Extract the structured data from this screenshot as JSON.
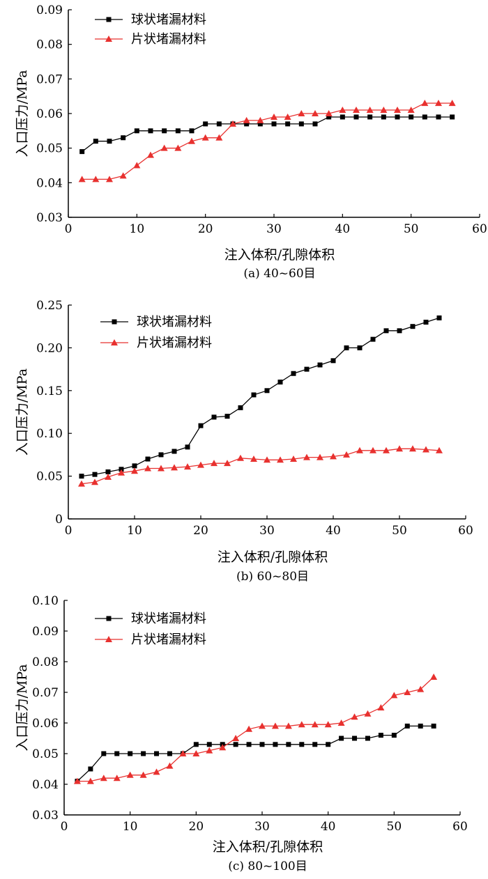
{
  "chart_data": [
    {
      "type": "line",
      "caption": "(a) 40~60目",
      "xlabel": "注入体积/孔隙体积",
      "ylabel": "入口压力/MPa",
      "xlim": [
        0,
        60
      ],
      "ylim": [
        0.03,
        0.09
      ],
      "xticks": [
        "0",
        "10",
        "20",
        "30",
        "40",
        "50",
        "60"
      ],
      "yticks": [
        "0.03",
        "0.04",
        "0.05",
        "0.06",
        "0.07",
        "0.08",
        "0.09"
      ],
      "legend_position": "top-left",
      "series": [
        {
          "name": "球状堵漏材料",
          "color": "#000000",
          "marker": "square",
          "x": [
            2,
            4,
            6,
            8,
            10,
            12,
            14,
            16,
            18,
            20,
            22,
            24,
            26,
            28,
            30,
            32,
            34,
            36,
            38,
            40,
            42,
            44,
            46,
            48,
            50,
            52,
            54,
            56
          ],
          "y": [
            0.049,
            0.052,
            0.052,
            0.053,
            0.055,
            0.055,
            0.055,
            0.055,
            0.055,
            0.057,
            0.057,
            0.057,
            0.057,
            0.057,
            0.057,
            0.057,
            0.057,
            0.057,
            0.059,
            0.059,
            0.059,
            0.059,
            0.059,
            0.059,
            0.059,
            0.059,
            0.059,
            0.059
          ]
        },
        {
          "name": "片状堵漏材料",
          "color": "#e8312f",
          "marker": "triangle",
          "x": [
            2,
            4,
            6,
            8,
            10,
            12,
            14,
            16,
            18,
            20,
            22,
            24,
            26,
            28,
            30,
            32,
            34,
            36,
            38,
            40,
            42,
            44,
            46,
            48,
            50,
            52,
            54,
            56
          ],
          "y": [
            0.041,
            0.041,
            0.041,
            0.042,
            0.045,
            0.048,
            0.05,
            0.05,
            0.052,
            0.053,
            0.053,
            0.057,
            0.058,
            0.058,
            0.059,
            0.059,
            0.06,
            0.06,
            0.06,
            0.061,
            0.061,
            0.061,
            0.061,
            0.061,
            0.061,
            0.063,
            0.063,
            0.063
          ]
        }
      ]
    },
    {
      "type": "line",
      "caption": "(b) 60~80目",
      "xlabel": "注入体积/孔隙体积",
      "ylabel": "入口压力/MPa",
      "xlim": [
        0,
        60
      ],
      "ylim": [
        0,
        0.25
      ],
      "xticks": [
        "0",
        "10",
        "20",
        "30",
        "40",
        "50",
        "60"
      ],
      "yticks": [
        "0",
        "0.05",
        "0.10",
        "0.15",
        "0.20",
        "0.25"
      ],
      "legend_position": "top-left",
      "series": [
        {
          "name": "球状堵漏材料",
          "color": "#000000",
          "marker": "square",
          "x": [
            2,
            4,
            6,
            8,
            10,
            12,
            14,
            16,
            18,
            20,
            22,
            24,
            26,
            28,
            30,
            32,
            34,
            36,
            38,
            40,
            42,
            44,
            46,
            48,
            50,
            52,
            54,
            56
          ],
          "y": [
            0.05,
            0.052,
            0.055,
            0.058,
            0.062,
            0.07,
            0.075,
            0.079,
            0.084,
            0.109,
            0.119,
            0.12,
            0.13,
            0.145,
            0.15,
            0.16,
            0.17,
            0.175,
            0.18,
            0.185,
            0.2,
            0.2,
            0.21,
            0.22,
            0.22,
            0.225,
            0.23,
            0.235
          ]
        },
        {
          "name": "片状堵漏材料",
          "color": "#e8312f",
          "marker": "triangle",
          "x": [
            2,
            4,
            6,
            8,
            10,
            12,
            14,
            16,
            18,
            20,
            22,
            24,
            26,
            28,
            30,
            32,
            34,
            36,
            38,
            40,
            42,
            44,
            46,
            48,
            50,
            52,
            54,
            56
          ],
          "y": [
            0.041,
            0.043,
            0.049,
            0.054,
            0.056,
            0.059,
            0.059,
            0.06,
            0.061,
            0.063,
            0.065,
            0.065,
            0.071,
            0.07,
            0.069,
            0.069,
            0.07,
            0.072,
            0.072,
            0.073,
            0.075,
            0.08,
            0.08,
            0.08,
            0.082,
            0.082,
            0.081,
            0.08
          ]
        }
      ]
    },
    {
      "type": "line",
      "caption": "(c) 80~100目",
      "xlabel": "注入体积/孔隙体积",
      "ylabel": "入口压力/MPa",
      "xlim": [
        0,
        60
      ],
      "ylim": [
        0.03,
        0.1
      ],
      "xticks": [
        "0",
        "10",
        "20",
        "30",
        "40",
        "50",
        "60"
      ],
      "yticks": [
        "0.03",
        "0.04",
        "0.05",
        "0.06",
        "0.07",
        "0.08",
        "0.09",
        "0.10"
      ],
      "legend_position": "top-left",
      "series": [
        {
          "name": "球状堵漏材料",
          "color": "#000000",
          "marker": "square",
          "x": [
            2,
            4,
            6,
            8,
            10,
            12,
            14,
            16,
            18,
            20,
            22,
            24,
            26,
            28,
            30,
            32,
            34,
            36,
            38,
            40,
            42,
            44,
            46,
            48,
            50,
            52,
            54,
            56
          ],
          "y": [
            0.041,
            0.045,
            0.05,
            0.05,
            0.05,
            0.05,
            0.05,
            0.05,
            0.05,
            0.053,
            0.053,
            0.053,
            0.053,
            0.053,
            0.053,
            0.053,
            0.053,
            0.053,
            0.053,
            0.053,
            0.055,
            0.055,
            0.055,
            0.056,
            0.056,
            0.059,
            0.059,
            0.059
          ]
        },
        {
          "name": "片状堵漏材料",
          "color": "#e8312f",
          "marker": "triangle",
          "x": [
            2,
            4,
            6,
            8,
            10,
            12,
            14,
            16,
            18,
            20,
            22,
            24,
            26,
            28,
            30,
            32,
            34,
            36,
            38,
            40,
            42,
            44,
            46,
            48,
            50,
            52,
            54,
            56
          ],
          "y": [
            0.041,
            0.041,
            0.042,
            0.042,
            0.043,
            0.043,
            0.044,
            0.046,
            0.05,
            0.05,
            0.051,
            0.052,
            0.055,
            0.058,
            0.059,
            0.059,
            0.059,
            0.0595,
            0.0595,
            0.0595,
            0.06,
            0.062,
            0.063,
            0.065,
            0.069,
            0.07,
            0.071,
            0.075
          ]
        }
      ]
    }
  ]
}
